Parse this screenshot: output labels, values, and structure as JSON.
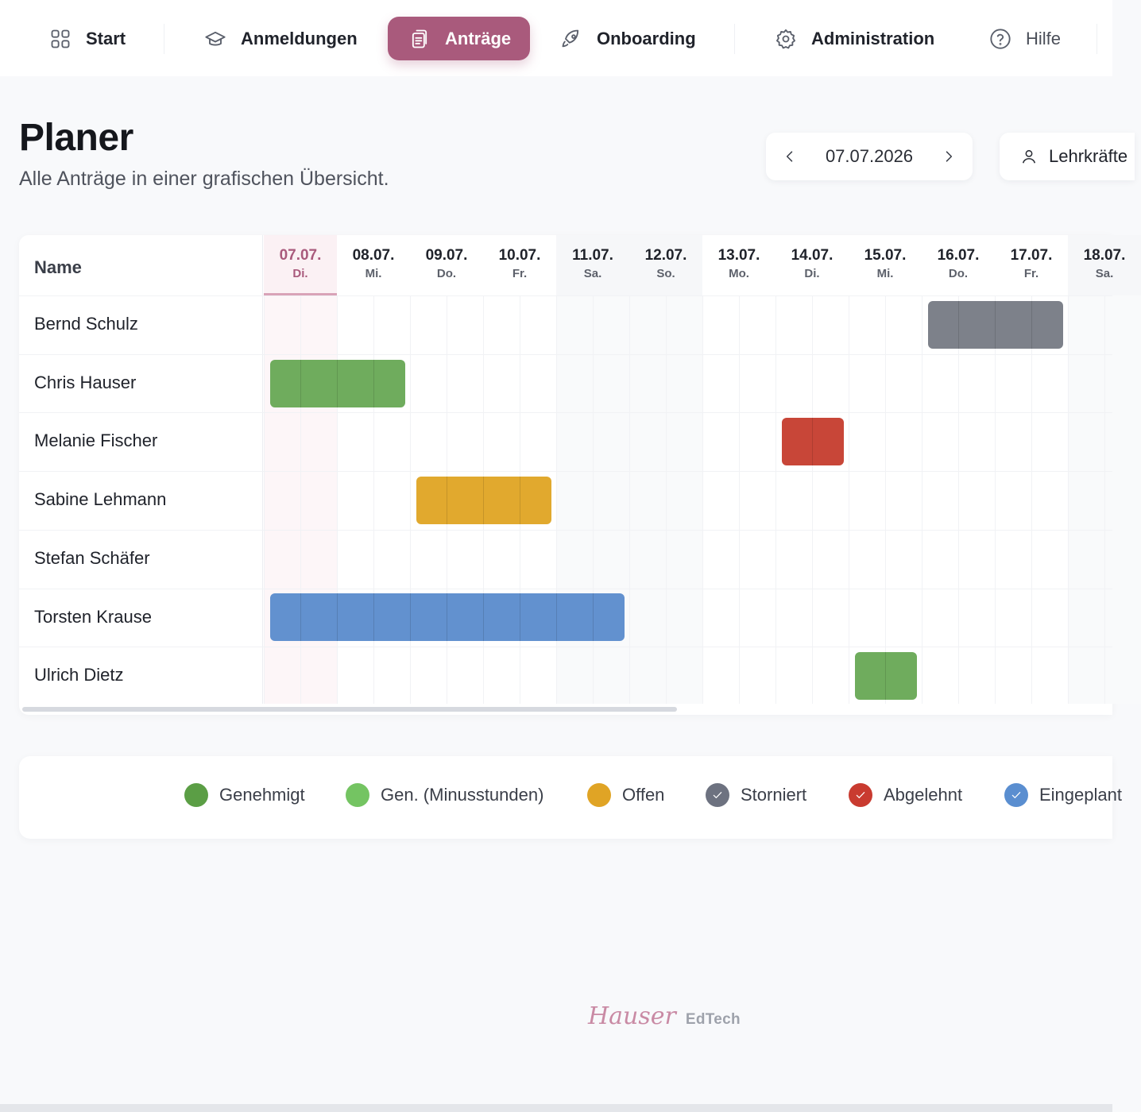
{
  "nav": {
    "items": [
      {
        "label": "Start",
        "icon": "grid-icon"
      },
      {
        "label": "Anmeldungen",
        "icon": "graduation-cap-icon"
      },
      {
        "label": "Anträge",
        "icon": "clipboard-icon",
        "active": true
      },
      {
        "label": "Onboarding",
        "icon": "rocket-icon"
      },
      {
        "label": "Administration",
        "icon": "gear-icon"
      },
      {
        "label": "Hilfe",
        "icon": "help-circle-icon"
      }
    ],
    "active_color": "#a95a7c"
  },
  "header": {
    "title": "Planer",
    "subtitle": "Alle Anträge in einer grafischen Übersicht.",
    "date": "07.07.2026",
    "role_button": "Lehrkräfte"
  },
  "planner": {
    "name_header": "Name",
    "days": [
      {
        "date": "07.07.",
        "weekday": "Di.",
        "today": true
      },
      {
        "date": "08.07.",
        "weekday": "Mi."
      },
      {
        "date": "09.07.",
        "weekday": "Do."
      },
      {
        "date": "10.07.",
        "weekday": "Fr."
      },
      {
        "date": "11.07.",
        "weekday": "Sa.",
        "weekend": true
      },
      {
        "date": "12.07.",
        "weekday": "So.",
        "weekend": true
      },
      {
        "date": "13.07.",
        "weekday": "Mo."
      },
      {
        "date": "14.07.",
        "weekday": "Di."
      },
      {
        "date": "15.07.",
        "weekday": "Mi."
      },
      {
        "date": "16.07.",
        "weekday": "Do."
      },
      {
        "date": "17.07.",
        "weekday": "Fr."
      },
      {
        "date": "18.07.",
        "weekday": "Sa.",
        "weekend": true
      }
    ],
    "rows": [
      {
        "name": "Bernd Schulz",
        "from": 9,
        "to": 10.8,
        "status": "Storniert"
      },
      {
        "name": "Chris Hauser",
        "from": 0,
        "to": 1.8,
        "status": "Genehmigt"
      },
      {
        "name": "Melanie Fischer",
        "from": 7,
        "to": 7.8,
        "status": "Abgelehnt"
      },
      {
        "name": "Sabine Lehmann",
        "from": 2,
        "to": 3.8,
        "status": "Offen"
      },
      {
        "name": "Stefan Schäfer"
      },
      {
        "name": "Torsten Krause",
        "from": 0,
        "to": 4.8,
        "status": "Eingeplant"
      },
      {
        "name": "Ulrich Dietz",
        "from": 8,
        "to": 8.8,
        "status": "Genehmigt"
      }
    ]
  },
  "legend": [
    {
      "label": "Genehmigt",
      "color": "#5b9e45",
      "check": false
    },
    {
      "label": "Gen. (Minusstunden)",
      "color": "#74c462",
      "check": false
    },
    {
      "label": "Offen",
      "color": "#e0a425",
      "check": false
    },
    {
      "label": "Storniert",
      "color": "#6d7280",
      "check": true
    },
    {
      "label": "Abgelehnt",
      "color": "#c93b30",
      "check": true
    },
    {
      "label": "Eingeplant",
      "color": "#5a8ed0",
      "check": true
    }
  ],
  "status_colors": {
    "Genehmigt": "#6fac5d",
    "Offen": "#e1a92e",
    "Storniert": "#7d818a",
    "Abgelehnt": "#c84638",
    "Eingeplant": "#6291cf"
  },
  "footer": {
    "brand_script": "Hauser",
    "brand_suffix": "EdTech"
  }
}
